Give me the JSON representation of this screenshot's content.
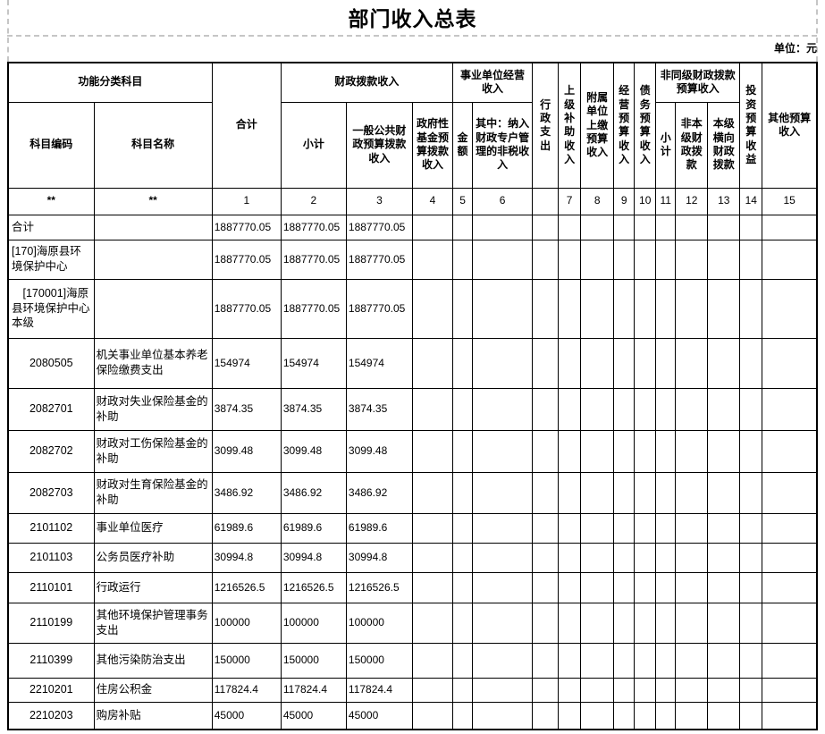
{
  "title": "部门收入总表",
  "unit_label": "单位：元",
  "colors": {
    "border": "#000000",
    "page_break_dash": "#c6c6c6",
    "text": "#000000",
    "background": "#ffffff"
  },
  "table": {
    "header": {
      "functional_category": "功能分类科目",
      "subject_code": "科目编码",
      "subject_name": "科目名称",
      "total": "合计",
      "fiscal_appropriation_income": "财政拨款收入",
      "subtotal": "小计",
      "general_public_budget": "一般公共财政预算拨款收入",
      "government_fund_budget": "政府性基金预算拨款收入",
      "business_operating_income": "事业单位经营收入",
      "amount": "金额",
      "non_tax_income": "其中：纳入财政专户管理的非税收入",
      "administrative_expense": "行政支出",
      "superior_subsidy_income": "上级补助收入",
      "affiliated_unit_income": "附属单位上缴预算收入",
      "operating_budget_income": "经营预算收入",
      "debt_budget_income": "债务预算收入",
      "non_same_level_income": "非同级财政拨款预算收入",
      "nsl_subtotal": "小计",
      "non_local_fiscal": "非本级财政拨款",
      "local_horizontal_fiscal": "本级横向财政拨款",
      "investment_budget_return": "投资预算收益",
      "other_budget_income": "其他预算收入"
    },
    "index_row": [
      "**",
      "**",
      "1",
      "2",
      "3",
      "4",
      "5",
      "6",
      "",
      "7",
      "8",
      "9",
      "10",
      "11",
      "12",
      "13",
      "14",
      "15"
    ],
    "rows": [
      {
        "code": "合计",
        "name": "",
        "values": [
          "1887770.05",
          "1887770.05",
          "1887770.05"
        ],
        "code_align": "left"
      },
      {
        "code": "[170]海原县环境保护中心",
        "name": "",
        "values": [
          "1887770.05",
          "1887770.05",
          "1887770.05"
        ],
        "code_align": "left"
      },
      {
        "code": "　[170001]海原县环境保护中心本级",
        "name": "",
        "values": [
          "1887770.05",
          "1887770.05",
          "1887770.05"
        ],
        "code_align": "left"
      },
      {
        "code": "2080505",
        "name": "机关事业单位基本养老保险缴费支出",
        "values": [
          "154974",
          "154974",
          "154974"
        ],
        "code_align": "center"
      },
      {
        "code": "2082701",
        "name": "财政对失业保险基金的补助",
        "values": [
          "3874.35",
          "3874.35",
          "3874.35"
        ],
        "code_align": "center"
      },
      {
        "code": "2082702",
        "name": "财政对工伤保险基金的补助",
        "values": [
          "3099.48",
          "3099.48",
          "3099.48"
        ],
        "code_align": "center"
      },
      {
        "code": "2082703",
        "name": "财政对生育保险基金的补助",
        "values": [
          "3486.92",
          "3486.92",
          "3486.92"
        ],
        "code_align": "center"
      },
      {
        "code": "2101102",
        "name": "事业单位医疗",
        "values": [
          "61989.6",
          "61989.6",
          "61989.6"
        ],
        "code_align": "center"
      },
      {
        "code": "2101103",
        "name": "公务员医疗补助",
        "values": [
          "30994.8",
          "30994.8",
          "30994.8"
        ],
        "code_align": "center"
      },
      {
        "code": "2110101",
        "name": "行政运行",
        "values": [
          "1216526.5",
          "1216526.5",
          "1216526.5"
        ],
        "code_align": "center"
      },
      {
        "code": "2110199",
        "name": "其他环境保护管理事务支出",
        "values": [
          "100000",
          "100000",
          "100000"
        ],
        "code_align": "center"
      },
      {
        "code": "2110399",
        "name": "其他污染防治支出",
        "values": [
          "150000",
          "150000",
          "150000"
        ],
        "code_align": "center"
      },
      {
        "code": "2210201",
        "name": "住房公积金",
        "values": [
          "117824.4",
          "117824.4",
          "117824.4"
        ],
        "code_align": "center"
      },
      {
        "code": "2210203",
        "name": "购房补贴",
        "values": [
          "45000",
          "45000",
          "45000"
        ],
        "code_align": "center"
      }
    ]
  }
}
